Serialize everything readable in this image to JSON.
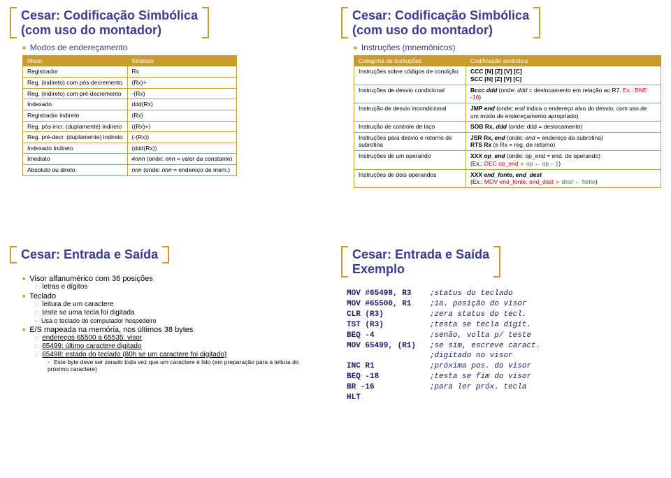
{
  "s1": {
    "title_l1": "Cesar: Codificação Simbólica",
    "title_l2": "(com uso do montador)",
    "sub": "Modos de endereçamento",
    "th0": "Modo",
    "th1": "Símbolo",
    "rows": [
      [
        "Registrador",
        "Rx"
      ],
      [
        "Reg. (indireto) com pós-decremento",
        "(Rx)+"
      ],
      [
        "Reg. (indireto) com pré-decremento",
        "-(Rx)"
      ],
      [
        "Indexado",
        "ddd(Rx)"
      ],
      [
        "Registrador indireto",
        "(Rx)"
      ],
      [
        "Reg. pós-incr. (duplamente) indireto",
        "((Rx)+)"
      ],
      [
        "Reg. pré-decr. (duplamente) indireto",
        "(-(Rx))"
      ],
      [
        "Indexado Indireto",
        "(ddd(Rx))"
      ]
    ],
    "r8c0": "Imediato",
    "r8c1a": "#",
    "r8c1b": "nnn",
    "r8c1c": "  (onde: ",
    "r8c1d": "nnn",
    "r8c1e": " = valor da constante)",
    "r9c0": "Absoluto ou direto",
    "r9c1a": "nnn",
    "r9c1b": "  (onde: ",
    "r9c1c": "nnn",
    "r9c1d": " = endereço de mem.)"
  },
  "s2": {
    "title_l1": "Cesar: Codificação Simbólica",
    "title_l2": "(com uso do montador)",
    "sub": "Instruções  (mnemônicos)",
    "th0": "Categoria de Instruções",
    "th1": "Codificação simbólica",
    "r0c0": "Instruções sobre códigos de condição",
    "r0c1l1": "CCC [N] [Z] [V] [C]",
    "r0c1l2": "SCC [N] [Z] [V] [C]",
    "r1c0": "Instruções de desvio condicional",
    "r1c1a": "Bccc ",
    "r1c1b": "ddd",
    "r1c1c": "   (onde: ",
    "r1c1d": "ddd",
    "r1c1e": " = deslocamento em relação ao R7. ",
    "r1c1ex": "Ex.: BNE -16",
    "r1c1f": ")",
    "r2c0": "Instrução de desvio incondicional",
    "r2c1a": "JMP ",
    "r2c1b": "end",
    "r2c1c": "   (onde: ",
    "r2c1d": "end",
    "r2c1e": " indica o endereço alvo do desvio, com uso de um modo de endereçamento apropriado)",
    "r3c0": "Instrução de controle de laço",
    "r3c1a": "SOB Rx, ",
    "r3c1b": "ddd",
    "r3c1c": "  (onde: ddd = deslocamento)",
    "r4c0": "Instruções para desvio e retorno de subrotina",
    "r4c1a": "JSR Rx, ",
    "r4c1b": "end",
    "r4c1c": "  (onde: ",
    "r4c1d": "end",
    "r4c1e": " = endereço da subrotina)",
    "r4c1l2a": "RTS Rx",
    "r4c1l2b": "               (e Rx = reg. de retorno)",
    "r5c0": "Instruções de um operando",
    "r5c1a": "XXX ",
    "r5c1b": "op_end",
    "r5c1c": "    (onde: op_end = end. do operando)",
    "r5c1ex1": "(Ex.: ",
    "r5c1ex2": "DEC op_end",
    "r5c1ex3": "op ← op – 1",
    "r5c1ex4": ")",
    "r6c0": "Instruções de dois operandos",
    "r6c1a": "XXX ",
    "r6c1b": "end_fonte",
    "r6c1c": ", ",
    "r6c1d": "end_dest",
    "r6c1ex1": "(Ex.: ",
    "r6c1ex2": "MOV end_fonte, end_dest",
    "r6c1ex3": "dest ← fonte",
    "r6c1ex4": ")"
  },
  "s3": {
    "title": "Cesar: Entrada e Saída",
    "b0": "Visor alfanumérico com 36 posições",
    "b0s0": "letras e dígitos",
    "b1": "Teclado",
    "b1s0": "leitura de um caractere",
    "b1s1": "teste se uma tecla foi digitada",
    "b1s2": "Usa o teclado do computador hospedeiro",
    "b2": "E/S mapeada na memória, nos últimos 38 bytes",
    "b2s0": "endereços 65500 a 65535: visor",
    "b2s1": "65499: último caractere digitado",
    "b2s2": "65498: estado do teclado (80h se um caractere foi digitado)",
    "b2s2s0": "Este byte deve ser zerado toda vez que um caractere é lido (em preparação para a leitura do próximo caractere)"
  },
  "s4": {
    "title_l1": "Cesar: Entrada e Saída",
    "title_l2": "Exemplo",
    "lines": [
      [
        "MOV #65498, R3",
        ";status do teclado"
      ],
      [
        "MOV #65500, R1",
        ";1a. posição do visor"
      ],
      [
        "CLR (R3)",
        ";zera status do tecl."
      ],
      [
        "TST (R3)",
        ";testa se tecla digit."
      ],
      [
        "BEQ -4",
        ";senão, volta p/ teste"
      ],
      [
        "MOV 65499, (R1)",
        ";se sim, escreve caract."
      ],
      [
        "",
        ";digitado no visor"
      ],
      [
        "INC R1",
        ";próxima pos. do visor"
      ],
      [
        "BEQ -18",
        ";testa se fim do visor"
      ],
      [
        "BR -16",
        ";para ler próx. tecla"
      ],
      [
        "HLT",
        ""
      ]
    ]
  }
}
